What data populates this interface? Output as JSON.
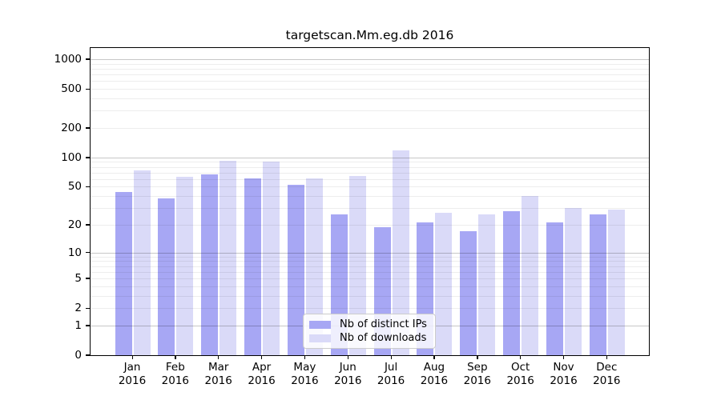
{
  "title": "targetscan.Mm.eg.db 2016",
  "chart_data": {
    "type": "bar",
    "scale": "log1p",
    "title": "targetscan.Mm.eg.db 2016",
    "categories": [
      "Jan",
      "Feb",
      "Mar",
      "Apr",
      "May",
      "Jun",
      "Jul",
      "Aug",
      "Sep",
      "Oct",
      "Nov",
      "Dec"
    ],
    "category_year": "2016",
    "series": [
      {
        "name": "Nb of distinct IPs",
        "color": "#a7a7f4",
        "values": [
          44,
          38,
          67,
          61,
          52,
          26,
          19,
          21,
          17,
          28,
          21,
          26
        ]
      },
      {
        "name": "Nb of downloads",
        "color": "#dadaf8",
        "values": [
          74,
          63,
          92,
          91,
          61,
          65,
          118,
          27,
          26,
          40,
          30,
          29
        ]
      }
    ],
    "y_axis": {
      "tick_labels": [
        "0",
        "1",
        "2",
        "5",
        "10",
        "20",
        "50",
        "100",
        "200",
        "500",
        "1000"
      ],
      "tick_values": [
        0,
        1,
        2,
        5,
        10,
        20,
        50,
        100,
        200,
        500,
        1000
      ],
      "top_value": 1300,
      "major_gridlines": [
        1,
        10,
        100,
        1000
      ],
      "minor_gridlines": [
        2,
        3,
        4,
        5,
        6,
        7,
        8,
        9,
        20,
        30,
        40,
        50,
        60,
        70,
        80,
        90,
        200,
        300,
        400,
        500,
        600,
        700,
        800,
        900
      ]
    },
    "ylim": [
      0,
      1300
    ],
    "xlabel": "",
    "ylabel": "",
    "grid": true,
    "legend_position": "lower center inside"
  },
  "colors": {
    "bar_ips": "#a7a7f4",
    "bar_downloads": "#dadaf8",
    "major_grid": "rgba(0,0,0,0.22)",
    "minor_grid": "rgba(0,0,0,0.07)",
    "axis": "#000000",
    "background": "#ffffff"
  }
}
